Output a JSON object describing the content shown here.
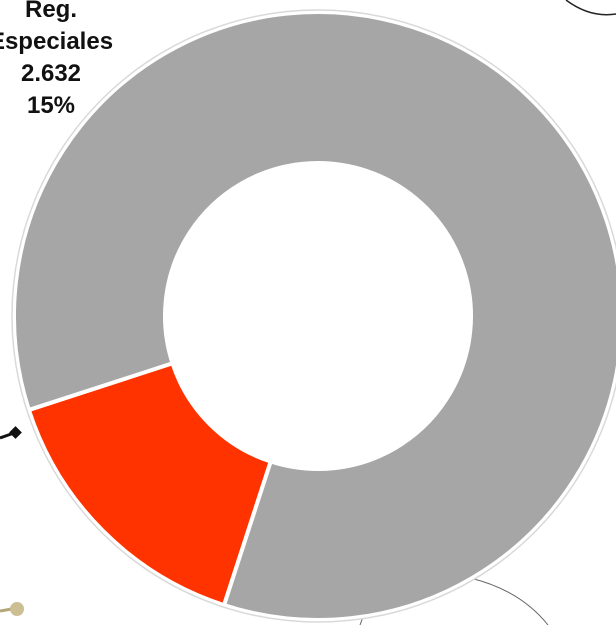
{
  "chart_data": {
    "type": "pie",
    "variant": "donut",
    "start_slice": "Reg. Especiales",
    "slices": [
      {
        "label": "Reg. Especiales",
        "value": 2632,
        "percent": 15,
        "value_text": "2.632",
        "percent_text": "15%",
        "color": "#ff3300"
      },
      {
        "label": "",
        "value": 14915,
        "percent": 85,
        "color": "#a6a6a6"
      }
    ],
    "labels_shown": [
      "Reg.",
      "Especiales",
      "2.632",
      "15%"
    ]
  },
  "colors": {
    "background": "#ffffff",
    "separator": "#ffffff",
    "outline": "#d9d9d9"
  }
}
